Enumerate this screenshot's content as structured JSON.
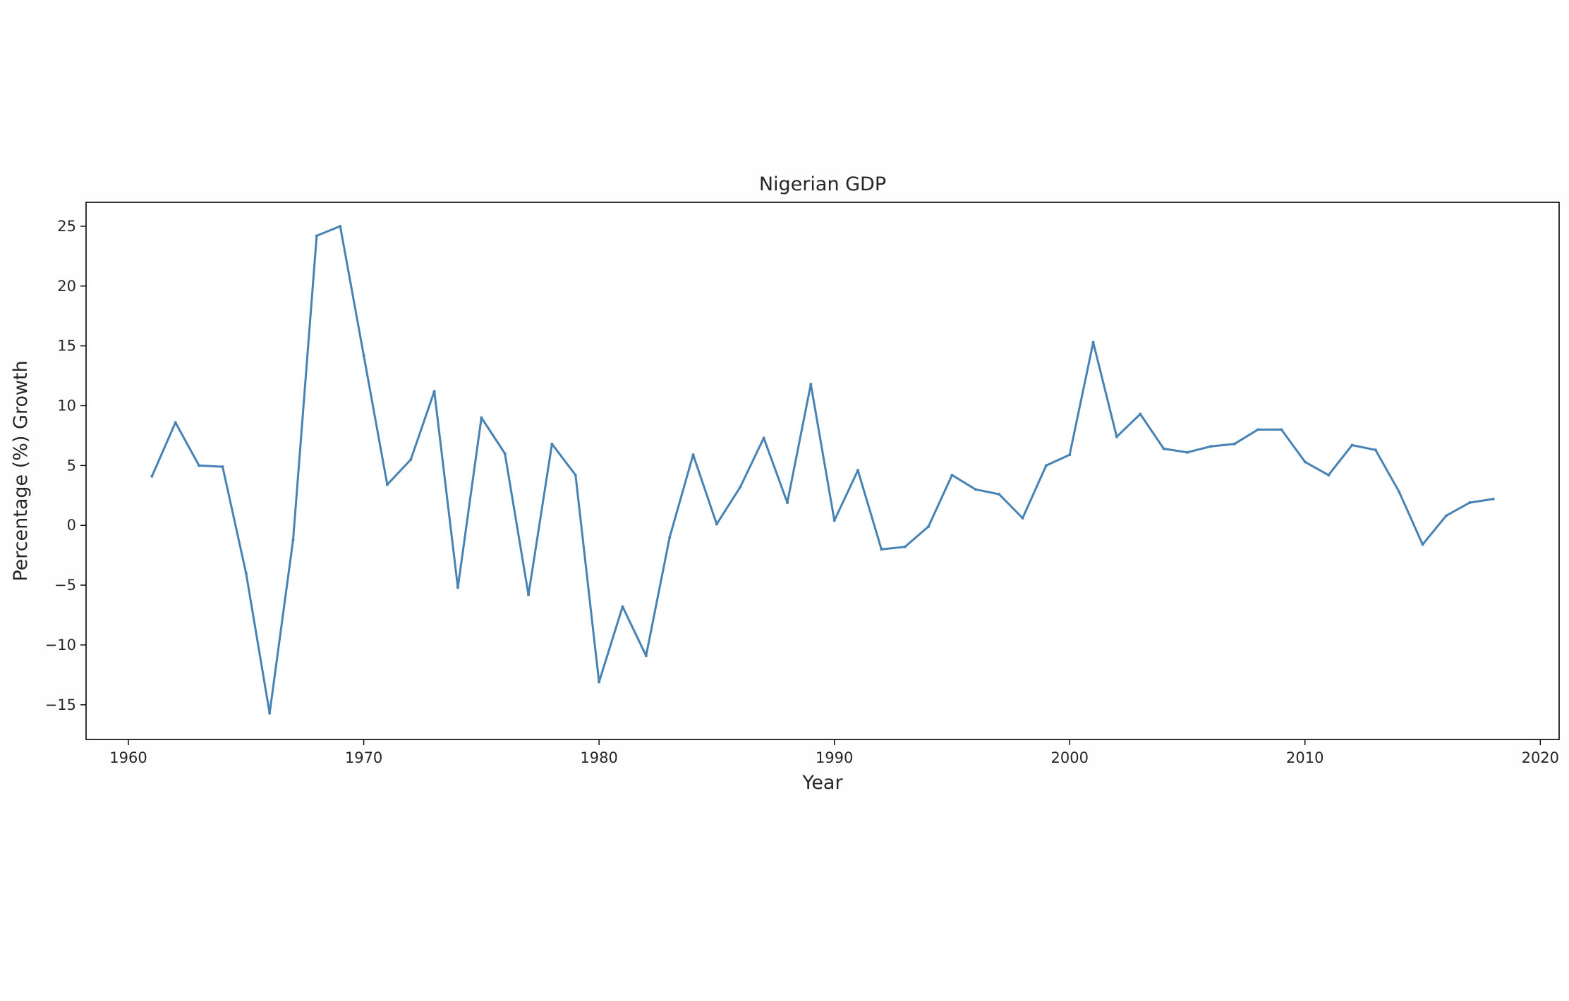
{
  "chart_data": {
    "type": "line",
    "title": "Nigerian GDP",
    "xlabel": "Year",
    "ylabel": "Percentage (%) Growth",
    "xlim": [
      1958.2,
      2020.8
    ],
    "ylim": [
      -17.9,
      27.0
    ],
    "x_ticks": [
      1960,
      1970,
      1980,
      1990,
      2000,
      2010,
      2020
    ],
    "y_ticks": [
      -15,
      -10,
      -5,
      0,
      5,
      10,
      15,
      20,
      25
    ],
    "grid": false,
    "legend": "none",
    "line_color": "#4682b4",
    "x": [
      1961,
      1962,
      1963,
      1964,
      1965,
      1966,
      1967,
      1968,
      1969,
      1970,
      1971,
      1972,
      1973,
      1974,
      1975,
      1976,
      1977,
      1978,
      1979,
      1980,
      1981,
      1982,
      1983,
      1984,
      1985,
      1986,
      1987,
      1988,
      1989,
      1990,
      1991,
      1992,
      1993,
      1994,
      1995,
      1996,
      1997,
      1998,
      1999,
      2000,
      2001,
      2002,
      2003,
      2004,
      2005,
      2006,
      2007,
      2008,
      2009,
      2010,
      2011,
      2012,
      2013,
      2014,
      2015,
      2016,
      2017,
      2018
    ],
    "series": [
      {
        "values": [
          4.1,
          8.6,
          5.0,
          4.9,
          -4.0,
          -15.7,
          -1.2,
          24.2,
          25.0,
          14.2,
          3.4,
          5.5,
          11.2,
          -5.2,
          9.0,
          6.0,
          -5.8,
          6.8,
          4.2,
          -13.1,
          -6.8,
          -10.9,
          -1.0,
          5.9,
          0.1,
          3.2,
          7.3,
          1.9,
          11.8,
          0.4,
          4.6,
          -2.0,
          -1.8,
          -0.1,
          4.2,
          3.0,
          2.6,
          0.6,
          5.0,
          5.9,
          15.3,
          7.4,
          9.3,
          6.4,
          6.1,
          6.6,
          6.8,
          8.0,
          8.0,
          5.3,
          4.2,
          6.7,
          6.3,
          2.8,
          -1.6,
          0.8,
          1.9,
          2.2
        ]
      }
    ]
  }
}
